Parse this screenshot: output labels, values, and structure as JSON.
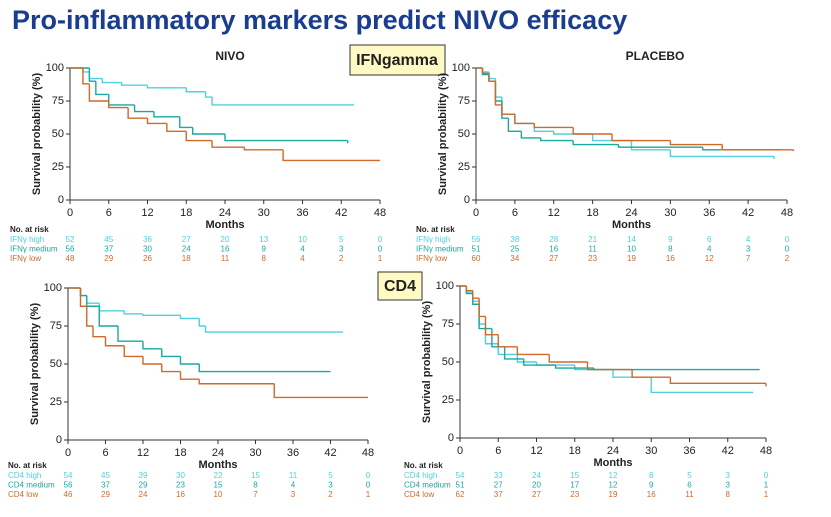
{
  "title": "Pro-inflammatory markers predict NIVO efficacy",
  "group_labels": [
    "IFNgamma",
    "CD4"
  ],
  "chart_data": [
    {
      "type": "line",
      "step": true,
      "title": "NIVO",
      "x_label": "Months",
      "y_label": "Survival probability (%)",
      "xlim": [
        0,
        48
      ],
      "ylim": [
        0,
        100
      ],
      "xticks": [
        0,
        6,
        12,
        18,
        24,
        30,
        36,
        42,
        48
      ],
      "yticks": [
        0,
        25,
        50,
        75,
        100
      ],
      "risk_title": "No. at risk",
      "series": [
        {
          "name": "IFNγ high",
          "color": "#4fd0e0",
          "x": [
            0,
            2,
            3,
            5,
            8,
            12,
            18,
            21,
            22,
            44
          ],
          "values": [
            100,
            97,
            92,
            89,
            87,
            85,
            82,
            78,
            72,
            72
          ],
          "at_risk": [
            52,
            45,
            36,
            27,
            20,
            13,
            10,
            5,
            0
          ]
        },
        {
          "name": "IFNγ medium",
          "color": "#1aa8a0",
          "x": [
            0,
            3,
            4,
            6,
            10,
            13,
            17,
            19,
            24,
            43
          ],
          "values": [
            100,
            90,
            80,
            72,
            67,
            63,
            55,
            50,
            45,
            43
          ],
          "at_risk": [
            56,
            37,
            30,
            24,
            16,
            9,
            4,
            3,
            0
          ]
        },
        {
          "name": "IFNγ low",
          "color": "#d0692a",
          "x": [
            0,
            2,
            3,
            6,
            9,
            12,
            15,
            18,
            22,
            27,
            33,
            48
          ],
          "values": [
            100,
            88,
            75,
            70,
            62,
            58,
            52,
            45,
            40,
            38,
            30,
            30
          ],
          "at_risk": [
            48,
            29,
            26,
            18,
            11,
            8,
            4,
            2,
            1
          ]
        }
      ]
    },
    {
      "type": "line",
      "step": true,
      "title": "PLACEBO",
      "x_label": "Months",
      "y_label": "Survival probability (%)",
      "xlim": [
        0,
        48
      ],
      "ylim": [
        0,
        100
      ],
      "xticks": [
        0,
        6,
        12,
        18,
        24,
        30,
        36,
        42,
        48
      ],
      "yticks": [
        0,
        25,
        50,
        75,
        100
      ],
      "risk_title": "No. at risk",
      "series": [
        {
          "name": "IFNγ high",
          "color": "#4fd0e0",
          "x": [
            0,
            1,
            2,
            3,
            4,
            6,
            9,
            12,
            18,
            24,
            30,
            46
          ],
          "values": [
            100,
            97,
            92,
            78,
            65,
            58,
            52,
            50,
            45,
            38,
            33,
            31
          ],
          "at_risk": [
            56,
            38,
            28,
            21,
            14,
            9,
            6,
            4,
            0
          ]
        },
        {
          "name": "IFNγ medium",
          "color": "#1aa8a0",
          "x": [
            0,
            1,
            2,
            3,
            4,
            5,
            7,
            10,
            15,
            22,
            35,
            47
          ],
          "values": [
            100,
            95,
            90,
            75,
            62,
            52,
            47,
            45,
            42,
            40,
            38,
            38
          ],
          "at_risk": [
            51,
            25,
            16,
            11,
            10,
            8,
            4,
            3,
            0
          ]
        },
        {
          "name": "IFNγ low",
          "color": "#d0692a",
          "x": [
            0,
            1,
            2,
            3,
            4,
            6,
            9,
            15,
            21,
            30,
            38,
            49
          ],
          "values": [
            100,
            96,
            90,
            72,
            65,
            58,
            55,
            50,
            45,
            42,
            38,
            37
          ],
          "at_risk": [
            60,
            34,
            27,
            23,
            19,
            16,
            12,
            7,
            2
          ]
        }
      ]
    },
    {
      "type": "line",
      "step": true,
      "x_label": "Months",
      "y_label": "Survival probability (%)",
      "xlim": [
        0,
        48
      ],
      "ylim": [
        0,
        100
      ],
      "xticks": [
        0,
        6,
        12,
        18,
        24,
        30,
        36,
        42,
        48
      ],
      "yticks": [
        0,
        25,
        50,
        75,
        100
      ],
      "risk_title": "No. at risk",
      "series": [
        {
          "name": "CD4 high",
          "color": "#4fd0e0",
          "x": [
            0,
            2,
            3,
            5,
            9,
            12,
            18,
            21,
            22,
            44
          ],
          "values": [
            100,
            95,
            90,
            85,
            83,
            82,
            80,
            75,
            71,
            71
          ],
          "at_risk": [
            54,
            45,
            39,
            30,
            22,
            15,
            11,
            5,
            0
          ]
        },
        {
          "name": "CD4 medium",
          "color": "#1aa8a0",
          "x": [
            0,
            2,
            3,
            5,
            8,
            12,
            15,
            18,
            21,
            42
          ],
          "values": [
            100,
            95,
            88,
            75,
            65,
            60,
            55,
            50,
            45,
            45
          ],
          "at_risk": [
            56,
            37,
            29,
            23,
            15,
            8,
            4,
            3,
            0
          ]
        },
        {
          "name": "CD4 low",
          "color": "#d0692a",
          "x": [
            0,
            2,
            3,
            4,
            6,
            9,
            12,
            15,
            18,
            21,
            33,
            48
          ],
          "values": [
            100,
            88,
            75,
            68,
            62,
            55,
            50,
            45,
            40,
            37,
            28,
            28
          ],
          "at_risk": [
            46,
            29,
            24,
            16,
            10,
            7,
            3,
            2,
            1
          ]
        }
      ]
    },
    {
      "type": "line",
      "step": true,
      "x_label": "Months",
      "y_label": "Survival probability (%)",
      "xlim": [
        0,
        48
      ],
      "ylim": [
        0,
        100
      ],
      "xticks": [
        0,
        6,
        12,
        18,
        24,
        30,
        36,
        42,
        48
      ],
      "yticks": [
        0,
        25,
        50,
        75,
        100
      ],
      "risk_title": "No. at risk",
      "series": [
        {
          "name": "CD4 high",
          "color": "#4fd0e0",
          "x": [
            0,
            1,
            2,
            3,
            4,
            6,
            9,
            12,
            18,
            24,
            30,
            46
          ],
          "values": [
            100,
            96,
            90,
            75,
            62,
            55,
            50,
            48,
            45,
            40,
            30,
            30
          ],
          "at_risk": [
            54,
            33,
            24,
            15,
            12,
            8,
            5,
            3,
            0
          ]
        },
        {
          "name": "CD4 medium",
          "color": "#1aa8a0",
          "x": [
            0,
            1,
            2,
            3,
            5,
            7,
            10,
            15,
            21,
            28,
            47
          ],
          "values": [
            100,
            95,
            88,
            72,
            60,
            52,
            48,
            46,
            45,
            45,
            45
          ],
          "at_risk": [
            51,
            27,
            20,
            17,
            12,
            9,
            6,
            3,
            1
          ]
        },
        {
          "name": "CD4 low",
          "color": "#d0692a",
          "x": [
            0,
            1,
            2,
            3,
            4,
            6,
            9,
            14,
            20,
            27,
            33,
            48
          ],
          "values": [
            100,
            97,
            92,
            80,
            68,
            60,
            55,
            50,
            45,
            40,
            36,
            34
          ],
          "at_risk": [
            62,
            37,
            27,
            23,
            19,
            16,
            11,
            8,
            1
          ]
        }
      ]
    }
  ]
}
